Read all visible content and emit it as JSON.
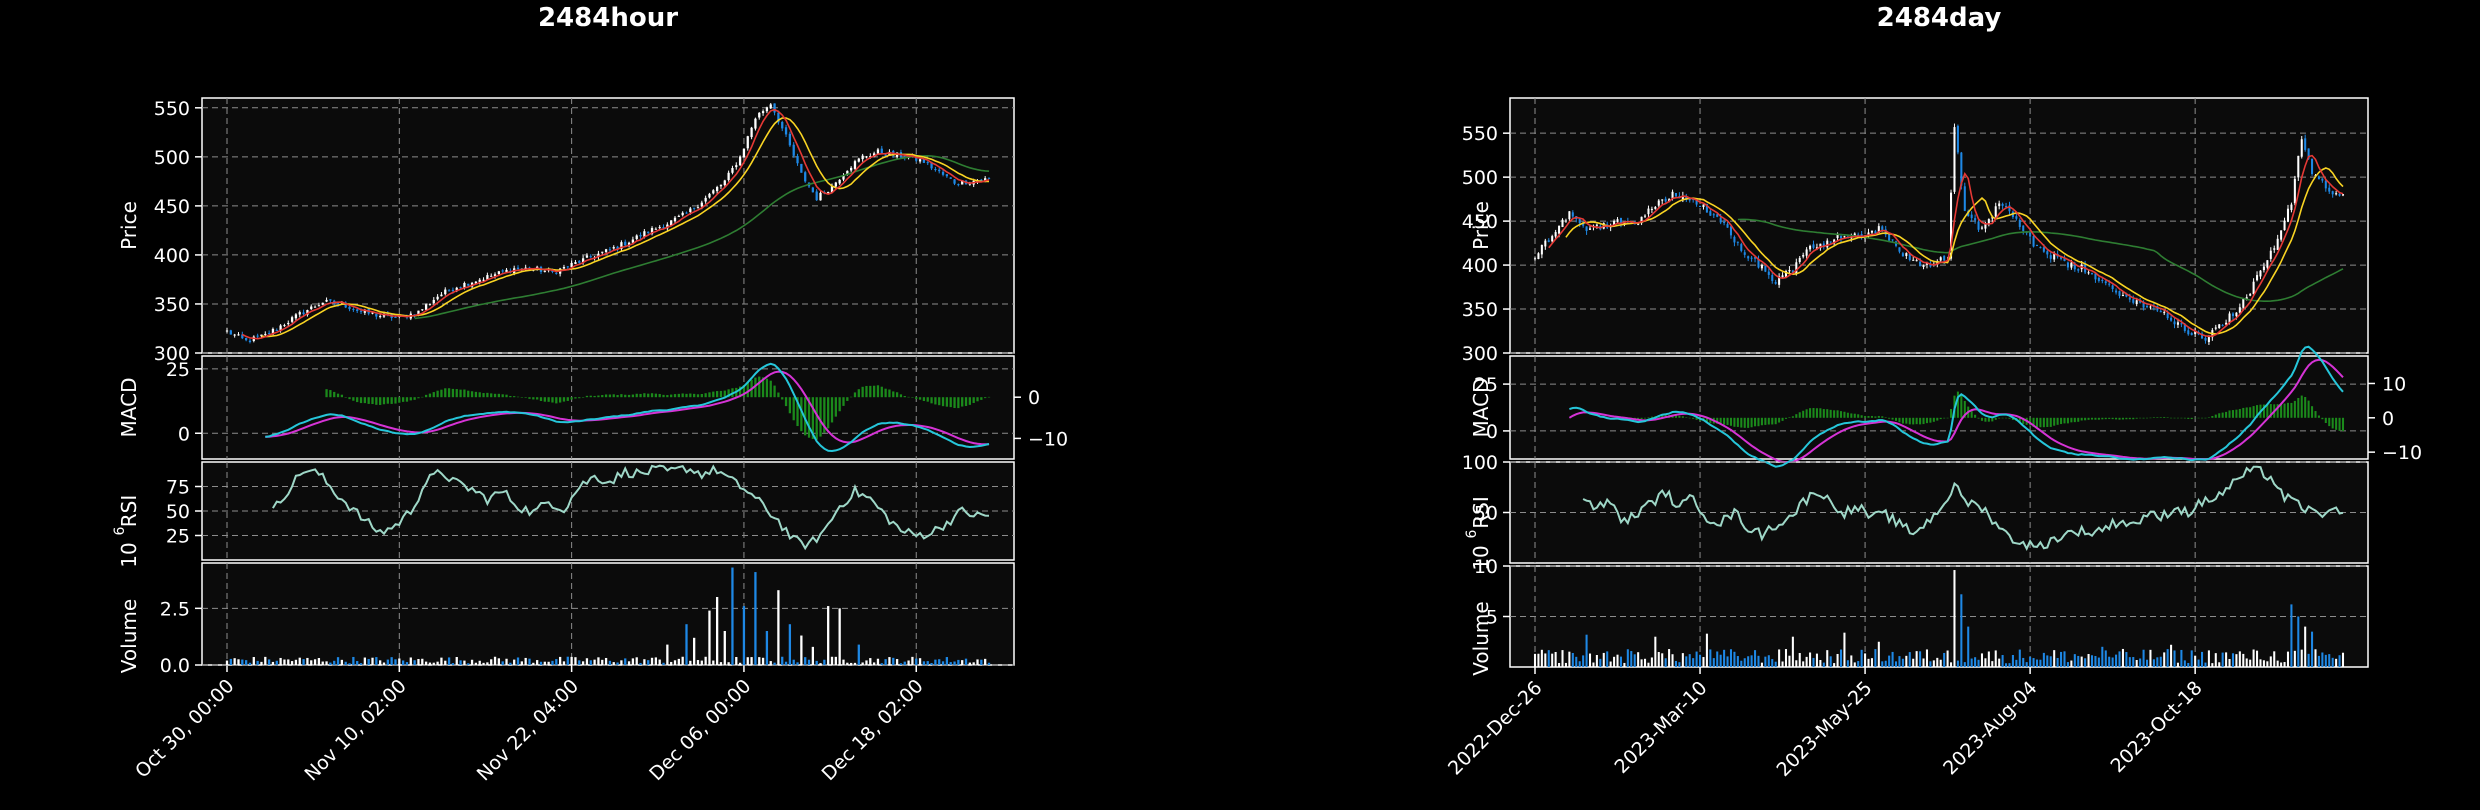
{
  "colors": {
    "background": "#000000",
    "axes_face": "#0b0b0b",
    "grid": "#8c8c8c",
    "up_candle": "#ffffff",
    "down_candle": "#1e88e5",
    "ma_fast": "#e53935",
    "ma_mid": "#f9d423",
    "ma_slow": "#2e7d32",
    "macd_line": "#26c6da",
    "signal_line": "#d633d6",
    "macd_hist": "#1b8a1b",
    "rsi_line": "#9fd8c8",
    "vol_up": "#ffffff",
    "vol_down": "#1e88e5"
  },
  "chart_data": [
    {
      "type": "candlestick",
      "title": "2484hour",
      "x_tick_labels": [
        "Oct 30, 00:00",
        "Nov 10, 02:00",
        "Nov 22, 04:00",
        "Dec 06, 00:00",
        "Dec 18, 02:00"
      ],
      "price": {
        "ylabel": "Price",
        "ylim": [
          300,
          560
        ],
        "yticks": [
          300,
          350,
          400,
          450,
          500,
          550
        ],
        "close_path": [
          [
            0,
            322
          ],
          [
            5,
            312
          ],
          [
            10,
            318
          ],
          [
            15,
            330
          ],
          [
            20,
            342
          ],
          [
            25,
            352
          ],
          [
            30,
            350
          ],
          [
            35,
            342
          ],
          [
            40,
            338
          ],
          [
            45,
            336
          ],
          [
            50,
            342
          ],
          [
            55,
            358
          ],
          [
            60,
            368
          ],
          [
            65,
            374
          ],
          [
            70,
            380
          ],
          [
            75,
            386
          ],
          [
            80,
            386
          ],
          [
            85,
            382
          ],
          [
            90,
            390
          ],
          [
            95,
            398
          ],
          [
            100,
            405
          ],
          [
            105,
            414
          ],
          [
            110,
            424
          ],
          [
            115,
            432
          ],
          [
            120,
            442
          ],
          [
            125,
            458
          ],
          [
            130,
            475
          ],
          [
            134,
            500
          ],
          [
            138,
            540
          ],
          [
            142,
            555
          ],
          [
            146,
            520
          ],
          [
            150,
            482
          ],
          [
            154,
            458
          ],
          [
            158,
            470
          ],
          [
            162,
            488
          ],
          [
            166,
            500
          ],
          [
            170,
            505
          ],
          [
            174,
            502
          ],
          [
            178,
            500
          ],
          [
            182,
            495
          ],
          [
            186,
            484
          ],
          [
            190,
            474
          ],
          [
            194,
            475
          ],
          [
            198,
            477
          ]
        ],
        "ma_periods_note": "",
        "grid": true
      },
      "macd": {
        "ylabel": "MACD",
        "left_ylim": [
          -10,
          30
        ],
        "left_yticks": [
          0,
          25
        ],
        "right_ylim": [
          -15,
          10
        ],
        "right_yticks": [
          0,
          -10
        ],
        "grid": true
      },
      "rsi": {
        "ylabel": "RSI",
        "ylim": [
          0,
          100
        ],
        "yticks": [
          25,
          50,
          75
        ],
        "path": [
          [
            12,
            50
          ],
          [
            16,
            72
          ],
          [
            20,
            92
          ],
          [
            24,
            88
          ],
          [
            28,
            70
          ],
          [
            32,
            55
          ],
          [
            36,
            40
          ],
          [
            40,
            28
          ],
          [
            44,
            35
          ],
          [
            48,
            50
          ],
          [
            52,
            80
          ],
          [
            56,
            90
          ],
          [
            60,
            78
          ],
          [
            64,
            72
          ],
          [
            68,
            62
          ],
          [
            72,
            70
          ],
          [
            76,
            55
          ],
          [
            80,
            48
          ],
          [
            84,
            60
          ],
          [
            88,
            52
          ],
          [
            92,
            75
          ],
          [
            96,
            85
          ],
          [
            100,
            80
          ],
          [
            104,
            90
          ],
          [
            108,
            88
          ],
          [
            112,
            92
          ],
          [
            116,
            90
          ],
          [
            120,
            94
          ],
          [
            124,
            88
          ],
          [
            128,
            92
          ],
          [
            132,
            80
          ],
          [
            136,
            70
          ],
          [
            140,
            55
          ],
          [
            144,
            40
          ],
          [
            148,
            20
          ],
          [
            152,
            15
          ],
          [
            156,
            30
          ],
          [
            160,
            55
          ],
          [
            164,
            70
          ],
          [
            168,
            62
          ],
          [
            172,
            45
          ],
          [
            176,
            30
          ],
          [
            180,
            25
          ],
          [
            184,
            28
          ],
          [
            188,
            38
          ],
          [
            192,
            50
          ],
          [
            196,
            45
          ]
        ]
      },
      "volume": {
        "ylabel": "Volume",
        "multiplier": "10",
        "multiplier_exp": "6",
        "ylim": [
          0,
          4.5
        ],
        "yticks": [
          0.0,
          2.5
        ],
        "ytick_labels": [
          "0.0",
          "2.5"
        ],
        "spikes": [
          [
            115,
            0.9,
            "up"
          ],
          [
            120,
            1.8,
            "down"
          ],
          [
            122,
            1.2,
            "up"
          ],
          [
            126,
            2.4,
            "up"
          ],
          [
            128,
            3.0,
            "up"
          ],
          [
            130,
            1.5,
            "up"
          ],
          [
            132,
            4.3,
            "down"
          ],
          [
            135,
            2.6,
            "down"
          ],
          [
            138,
            4.1,
            "down"
          ],
          [
            141,
            1.5,
            "down"
          ],
          [
            144,
            3.3,
            "up"
          ],
          [
            147,
            1.8,
            "down"
          ],
          [
            150,
            1.3,
            "up"
          ],
          [
            153,
            0.8,
            "up"
          ],
          [
            157,
            2.6,
            "up"
          ],
          [
            160,
            2.5,
            "up"
          ],
          [
            165,
            0.9,
            "down"
          ]
        ]
      }
    },
    {
      "type": "candlestick",
      "title": "2484day",
      "x_tick_labels": [
        "2022-Dec-26",
        "2023-Mar-10",
        "2023-May-25",
        "2023-Aug-04",
        "2023-Oct-18"
      ],
      "price": {
        "ylabel": "Price",
        "ylim": [
          300,
          590
        ],
        "yticks": [
          300,
          350,
          400,
          450,
          500,
          550
        ],
        "close_path": [
          [
            0,
            410
          ],
          [
            5,
            435
          ],
          [
            10,
            460
          ],
          [
            15,
            440
          ],
          [
            20,
            445
          ],
          [
            25,
            450
          ],
          [
            30,
            448
          ],
          [
            35,
            470
          ],
          [
            40,
            480
          ],
          [
            45,
            475
          ],
          [
            50,
            462
          ],
          [
            55,
            445
          ],
          [
            60,
            420
          ],
          [
            65,
            400
          ],
          [
            70,
            382
          ],
          [
            75,
            395
          ],
          [
            80,
            420
          ],
          [
            85,
            425
          ],
          [
            90,
            435
          ],
          [
            95,
            430
          ],
          [
            100,
            440
          ],
          [
            105,
            420
          ],
          [
            110,
            405
          ],
          [
            115,
            400
          ],
          [
            120,
            410
          ],
          [
            122,
            560
          ],
          [
            125,
            460
          ],
          [
            130,
            440
          ],
          [
            135,
            470
          ],
          [
            140,
            450
          ],
          [
            145,
            425
          ],
          [
            150,
            410
          ],
          [
            155,
            400
          ],
          [
            160,
            395
          ],
          [
            165,
            380
          ],
          [
            170,
            365
          ],
          [
            175,
            360
          ],
          [
            180,
            350
          ],
          [
            185,
            340
          ],
          [
            190,
            325
          ],
          [
            195,
            318
          ],
          [
            200,
            335
          ],
          [
            205,
            350
          ],
          [
            210,
            385
          ],
          [
            215,
            420
          ],
          [
            220,
            470
          ],
          [
            223,
            545
          ],
          [
            226,
            505
          ],
          [
            230,
            490
          ],
          [
            234,
            480
          ]
        ],
        "grid": true
      },
      "macd": {
        "ylabel": "MACD",
        "left_ylim": [
          -15,
          40
        ],
        "left_yticks": [
          0,
          25
        ],
        "right_ylim": [
          -12,
          18
        ],
        "right_yticks": [
          10,
          0,
          -10
        ],
        "grid": true
      },
      "rsi": {
        "ylabel": "RSI",
        "ylim": [
          0,
          100
        ],
        "yticks": [
          50,
          100
        ],
        "path": [
          [
            14,
            62
          ],
          [
            18,
            55
          ],
          [
            22,
            60
          ],
          [
            26,
            40
          ],
          [
            30,
            50
          ],
          [
            34,
            60
          ],
          [
            38,
            70
          ],
          [
            42,
            55
          ],
          [
            46,
            65
          ],
          [
            50,
            45
          ],
          [
            54,
            40
          ],
          [
            58,
            50
          ],
          [
            62,
            35
          ],
          [
            66,
            28
          ],
          [
            70,
            38
          ],
          [
            74,
            45
          ],
          [
            78,
            60
          ],
          [
            82,
            72
          ],
          [
            86,
            60
          ],
          [
            90,
            50
          ],
          [
            94,
            55
          ],
          [
            98,
            45
          ],
          [
            102,
            48
          ],
          [
            106,
            38
          ],
          [
            110,
            30
          ],
          [
            114,
            40
          ],
          [
            118,
            55
          ],
          [
            122,
            75
          ],
          [
            126,
            60
          ],
          [
            130,
            55
          ],
          [
            134,
            40
          ],
          [
            138,
            25
          ],
          [
            142,
            20
          ],
          [
            146,
            15
          ],
          [
            150,
            22
          ],
          [
            154,
            28
          ],
          [
            158,
            32
          ],
          [
            162,
            30
          ],
          [
            166,
            35
          ],
          [
            170,
            42
          ],
          [
            174,
            38
          ],
          [
            178,
            48
          ],
          [
            182,
            45
          ],
          [
            186,
            55
          ],
          [
            190,
            50
          ],
          [
            194,
            60
          ],
          [
            198,
            65
          ],
          [
            202,
            75
          ],
          [
            206,
            88
          ],
          [
            210,
            92
          ],
          [
            214,
            85
          ],
          [
            218,
            65
          ],
          [
            222,
            58
          ],
          [
            226,
            50
          ]
        ]
      },
      "volume": {
        "ylabel": "Volume",
        "multiplier": "10",
        "multiplier_exp": "6",
        "ylim": [
          0,
          10
        ],
        "yticks": [
          5,
          10
        ],
        "ytick_labels": [
          "5",
          "10"
        ],
        "spikes": [
          [
            122,
            9.6,
            "up"
          ],
          [
            124,
            7.2,
            "down"
          ],
          [
            126,
            4.0,
            "down"
          ],
          [
            35,
            3.0,
            "up"
          ],
          [
            50,
            3.3,
            "up"
          ],
          [
            75,
            3.0,
            "up"
          ],
          [
            90,
            3.4,
            "up"
          ],
          [
            220,
            6.2,
            "down"
          ],
          [
            222,
            5.0,
            "down"
          ],
          [
            224,
            4.0,
            "up"
          ],
          [
            226,
            3.5,
            "down"
          ],
          [
            15,
            3.2,
            "down"
          ],
          [
            100,
            2.5,
            "up"
          ],
          [
            165,
            2.0,
            "down"
          ],
          [
            185,
            2.2,
            "up"
          ]
        ]
      }
    }
  ]
}
